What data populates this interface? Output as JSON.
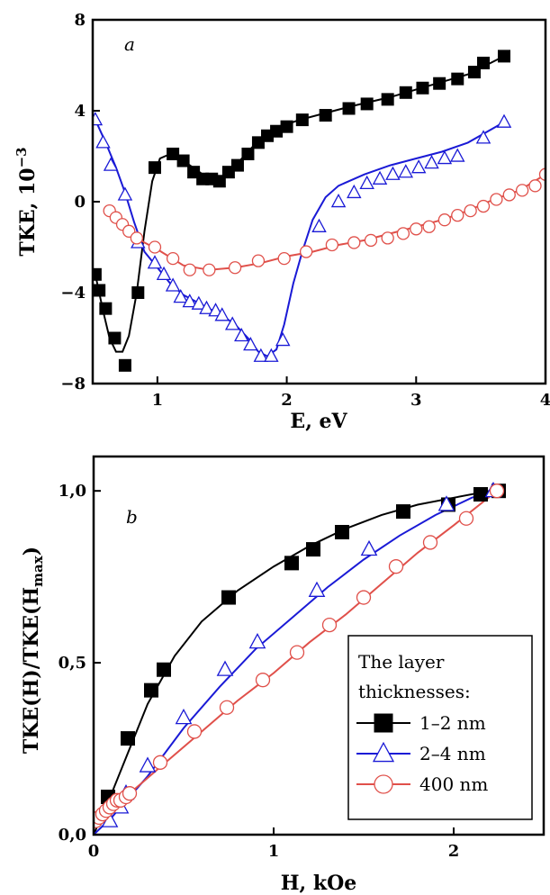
{
  "chart_data": [
    {
      "panel": "a",
      "type": "line",
      "xlabel": "E, eV",
      "ylabel_main": "TKE, 10",
      "ylabel_sup": "−3",
      "xlim": [
        0.5,
        4
      ],
      "ylim": [
        -8,
        8
      ],
      "xticks": [
        1,
        2,
        3,
        4
      ],
      "xtick_labels": [
        "1",
        "2",
        "3",
        "4"
      ],
      "yticks": [
        -8,
        -4,
        0,
        4,
        8
      ],
      "ytick_labels": [
        "−8",
        "−4",
        "0",
        "4",
        "8"
      ],
      "grid": false,
      "series": [
        {
          "marker": "square",
          "color": "#000000",
          "fill": "#000000",
          "curve": [
            [
              0.52,
              -3.2
            ],
            [
              0.58,
              -4.8
            ],
            [
              0.63,
              -6.0
            ],
            [
              0.68,
              -6.6
            ],
            [
              0.73,
              -6.6
            ],
            [
              0.78,
              -5.9
            ],
            [
              0.84,
              -4.0
            ],
            [
              0.9,
              -1.3
            ],
            [
              0.96,
              0.9
            ],
            [
              1.02,
              1.9
            ],
            [
              1.1,
              2.1
            ],
            [
              1.2,
              1.8
            ],
            [
              1.3,
              1.4
            ],
            [
              1.4,
              1.0
            ],
            [
              1.48,
              0.9
            ],
            [
              1.55,
              1.2
            ],
            [
              1.62,
              1.7
            ],
            [
              1.7,
              2.2
            ],
            [
              1.8,
              2.8
            ],
            [
              1.9,
              3.1
            ],
            [
              2.0,
              3.4
            ],
            [
              2.1,
              3.6
            ],
            [
              2.3,
              3.9
            ],
            [
              2.5,
              4.2
            ],
            [
              2.8,
              4.6
            ],
            [
              3.1,
              5.1
            ],
            [
              3.4,
              5.6
            ],
            [
              3.68,
              6.4
            ]
          ],
          "markers": [
            [
              0.52,
              -3.2
            ],
            [
              0.55,
              -3.9
            ],
            [
              0.6,
              -4.7
            ],
            [
              0.67,
              -6.0
            ],
            [
              0.75,
              -7.2
            ],
            [
              0.85,
              -4.0
            ],
            [
              0.98,
              1.5
            ],
            [
              1.12,
              2.1
            ],
            [
              1.2,
              1.8
            ],
            [
              1.28,
              1.3
            ],
            [
              1.35,
              1.0
            ],
            [
              1.42,
              1.0
            ],
            [
              1.48,
              0.9
            ],
            [
              1.55,
              1.3
            ],
            [
              1.62,
              1.6
            ],
            [
              1.7,
              2.1
            ],
            [
              1.78,
              2.6
            ],
            [
              1.85,
              2.9
            ],
            [
              1.92,
              3.1
            ],
            [
              2.0,
              3.3
            ],
            [
              2.12,
              3.6
            ],
            [
              2.3,
              3.8
            ],
            [
              2.48,
              4.1
            ],
            [
              2.62,
              4.3
            ],
            [
              2.78,
              4.5
            ],
            [
              2.92,
              4.8
            ],
            [
              3.05,
              5.0
            ],
            [
              3.18,
              5.2
            ],
            [
              3.32,
              5.4
            ],
            [
              3.45,
              5.7
            ],
            [
              3.52,
              6.1
            ],
            [
              3.68,
              6.4
            ]
          ]
        },
        {
          "marker": "triangle",
          "color": "#1a1ad6",
          "fill": "#ffffff",
          "curve": [
            [
              0.52,
              3.6
            ],
            [
              0.6,
              2.6
            ],
            [
              0.68,
              1.5
            ],
            [
              0.75,
              0.4
            ],
            [
              0.82,
              -0.9
            ],
            [
              0.9,
              -2.2
            ],
            [
              1.0,
              -2.9
            ],
            [
              1.1,
              -3.6
            ],
            [
              1.2,
              -4.1
            ],
            [
              1.3,
              -4.4
            ],
            [
              1.4,
              -4.7
            ],
            [
              1.5,
              -5.0
            ],
            [
              1.6,
              -5.4
            ],
            [
              1.7,
              -6.0
            ],
            [
              1.78,
              -6.6
            ],
            [
              1.85,
              -6.8
            ],
            [
              1.92,
              -6.5
            ],
            [
              1.98,
              -5.4
            ],
            [
              2.05,
              -3.6
            ],
            [
              2.12,
              -2.2
            ],
            [
              2.2,
              -0.8
            ],
            [
              2.3,
              0.2
            ],
            [
              2.4,
              0.7
            ],
            [
              2.6,
              1.2
            ],
            [
              2.8,
              1.6
            ],
            [
              3.0,
              1.9
            ],
            [
              3.2,
              2.2
            ],
            [
              3.4,
              2.6
            ],
            [
              3.68,
              3.5
            ]
          ],
          "markers": [
            [
              0.52,
              3.6
            ],
            [
              0.58,
              2.6
            ],
            [
              0.64,
              1.6
            ],
            [
              0.75,
              0.3
            ],
            [
              0.85,
              -1.8
            ],
            [
              0.98,
              -2.7
            ],
            [
              1.05,
              -3.2
            ],
            [
              1.12,
              -3.7
            ],
            [
              1.18,
              -4.2
            ],
            [
              1.25,
              -4.4
            ],
            [
              1.32,
              -4.5
            ],
            [
              1.38,
              -4.7
            ],
            [
              1.45,
              -4.8
            ],
            [
              1.5,
              -5.0
            ],
            [
              1.58,
              -5.4
            ],
            [
              1.65,
              -5.9
            ],
            [
              1.72,
              -6.3
            ],
            [
              1.8,
              -6.8
            ],
            [
              1.88,
              -6.8
            ],
            [
              1.97,
              -6.1
            ],
            [
              2.25,
              -1.1
            ],
            [
              2.4,
              0.0
            ],
            [
              2.52,
              0.4
            ],
            [
              2.62,
              0.8
            ],
            [
              2.72,
              1.0
            ],
            [
              2.82,
              1.2
            ],
            [
              2.92,
              1.3
            ],
            [
              3.02,
              1.5
            ],
            [
              3.12,
              1.7
            ],
            [
              3.22,
              1.9
            ],
            [
              3.32,
              2.0
            ],
            [
              3.52,
              2.8
            ],
            [
              3.68,
              3.5
            ]
          ]
        },
        {
          "marker": "circle",
          "color": "#e0504a",
          "fill": "#ffffff",
          "curve": [
            [
              0.63,
              -0.4
            ],
            [
              0.75,
              -1.2
            ],
            [
              0.9,
              -1.8
            ],
            [
              1.0,
              -2.1
            ],
            [
              1.2,
              -2.8
            ],
            [
              1.4,
              -3.0
            ],
            [
              1.6,
              -2.9
            ],
            [
              1.8,
              -2.7
            ],
            [
              2.0,
              -2.4
            ],
            [
              2.2,
              -2.2
            ],
            [
              2.4,
              -1.9
            ],
            [
              2.6,
              -1.7
            ],
            [
              2.8,
              -1.4
            ],
            [
              3.0,
              -1.1
            ],
            [
              3.2,
              -0.8
            ],
            [
              3.4,
              -0.4
            ],
            [
              3.6,
              0.1
            ],
            [
              3.8,
              0.5
            ],
            [
              4.0,
              1.2
            ]
          ],
          "markers": [
            [
              0.63,
              -0.4
            ],
            [
              0.68,
              -0.7
            ],
            [
              0.73,
              -1.0
            ],
            [
              0.78,
              -1.3
            ],
            [
              0.84,
              -1.6
            ],
            [
              0.98,
              -2.0
            ],
            [
              1.12,
              -2.5
            ],
            [
              1.25,
              -3.0
            ],
            [
              1.4,
              -3.0
            ],
            [
              1.6,
              -2.9
            ],
            [
              1.78,
              -2.6
            ],
            [
              1.98,
              -2.5
            ],
            [
              2.15,
              -2.2
            ],
            [
              2.35,
              -1.9
            ],
            [
              2.52,
              -1.8
            ],
            [
              2.65,
              -1.7
            ],
            [
              2.78,
              -1.6
            ],
            [
              2.9,
              -1.4
            ],
            [
              3.0,
              -1.2
            ],
            [
              3.1,
              -1.1
            ],
            [
              3.22,
              -0.8
            ],
            [
              3.32,
              -0.6
            ],
            [
              3.42,
              -0.4
            ],
            [
              3.52,
              -0.2
            ],
            [
              3.62,
              0.1
            ],
            [
              3.72,
              0.3
            ],
            [
              3.82,
              0.5
            ],
            [
              3.92,
              0.7
            ],
            [
              4.0,
              1.2
            ]
          ]
        }
      ]
    },
    {
      "panel": "b",
      "type": "line",
      "xlabel": "H, kOe",
      "ylabel_main": "TKE(H)/TKE(H",
      "ylabel_sub": "max",
      "ylabel_tail": ")",
      "xlim": [
        0,
        2.5
      ],
      "ylim": [
        0,
        1.1
      ],
      "xticks": [
        0,
        1,
        2
      ],
      "xtick_labels": [
        "0",
        "1",
        "2"
      ],
      "yticks": [
        0,
        0.5,
        1.0
      ],
      "ytick_labels": [
        "0,0",
        "0,5",
        "1,0"
      ],
      "grid": false,
      "legend": {
        "title_lines": [
          "The layer",
          "thicknesses:"
        ],
        "entries": [
          "1–2 nm",
          "2–4 nm",
          "400 nm"
        ],
        "placement": "bottom-right"
      },
      "series": [
        {
          "name": "1–2 nm",
          "marker": "square",
          "color": "#000000",
          "fill": "#000000",
          "curve": [
            [
              0,
              0
            ],
            [
              0.05,
              0.06
            ],
            [
              0.1,
              0.12
            ],
            [
              0.2,
              0.25
            ],
            [
              0.3,
              0.38
            ],
            [
              0.45,
              0.52
            ],
            [
              0.6,
              0.62
            ],
            [
              0.8,
              0.71
            ],
            [
              1.0,
              0.78
            ],
            [
              1.2,
              0.84
            ],
            [
              1.4,
              0.89
            ],
            [
              1.6,
              0.93
            ],
            [
              1.8,
              0.96
            ],
            [
              2.0,
              0.98
            ],
            [
              2.2,
              1.0
            ]
          ],
          "markers": [
            [
              0.08,
              0.11
            ],
            [
              0.19,
              0.28
            ],
            [
              0.32,
              0.42
            ],
            [
              0.39,
              0.48
            ],
            [
              0.75,
              0.69
            ],
            [
              1.1,
              0.79
            ],
            [
              1.22,
              0.83
            ],
            [
              1.38,
              0.88
            ],
            [
              1.72,
              0.94
            ],
            [
              1.97,
              0.96
            ],
            [
              2.15,
              0.99
            ],
            [
              2.25,
              1.0
            ]
          ]
        },
        {
          "name": "2–4 nm",
          "marker": "triangle",
          "color": "#1a1ad6",
          "fill": "#ffffff",
          "curve": [
            [
              0,
              0
            ],
            [
              0.1,
              0.05
            ],
            [
              0.3,
              0.17
            ],
            [
              0.5,
              0.31
            ],
            [
              0.7,
              0.43
            ],
            [
              0.9,
              0.54
            ],
            [
              1.1,
              0.63
            ],
            [
              1.3,
              0.72
            ],
            [
              1.5,
              0.8
            ],
            [
              1.7,
              0.87
            ],
            [
              1.9,
              0.93
            ],
            [
              2.1,
              0.98
            ],
            [
              2.22,
              1.0
            ]
          ],
          "markers": [
            [
              0.09,
              0.04
            ],
            [
              0.15,
              0.08
            ],
            [
              0.18,
              0.12
            ],
            [
              0.3,
              0.2
            ],
            [
              0.5,
              0.34
            ],
            [
              0.73,
              0.48
            ],
            [
              0.91,
              0.56
            ],
            [
              1.24,
              0.71
            ],
            [
              1.53,
              0.83
            ],
            [
              1.96,
              0.96
            ],
            [
              2.22,
              1.0
            ]
          ]
        },
        {
          "name": "400 nm",
          "marker": "circle",
          "color": "#e0504a",
          "fill": "#ffffff",
          "curve": [
            [
              0,
              0.04
            ],
            [
              0.2,
              0.12
            ],
            [
              0.4,
              0.21
            ],
            [
              0.6,
              0.3
            ],
            [
              0.8,
              0.39
            ],
            [
              1.0,
              0.47
            ],
            [
              1.2,
              0.56
            ],
            [
              1.4,
              0.64
            ],
            [
              1.6,
              0.73
            ],
            [
              1.8,
              0.82
            ],
            [
              2.0,
              0.9
            ],
            [
              2.24,
              1.0
            ]
          ],
          "markers": [
            [
              0.01,
              0.04
            ],
            [
              0.03,
              0.05
            ],
            [
              0.05,
              0.06
            ],
            [
              0.07,
              0.07
            ],
            [
              0.09,
              0.08
            ],
            [
              0.11,
              0.09
            ],
            [
              0.13,
              0.1
            ],
            [
              0.15,
              0.1
            ],
            [
              0.18,
              0.11
            ],
            [
              0.2,
              0.12
            ],
            [
              0.37,
              0.21
            ],
            [
              0.56,
              0.3
            ],
            [
              0.74,
              0.37
            ],
            [
              0.94,
              0.45
            ],
            [
              1.13,
              0.53
            ],
            [
              1.31,
              0.61
            ],
            [
              1.5,
              0.69
            ],
            [
              1.68,
              0.78
            ],
            [
              1.87,
              0.85
            ],
            [
              2.07,
              0.92
            ],
            [
              2.24,
              1.0
            ]
          ]
        }
      ]
    }
  ]
}
